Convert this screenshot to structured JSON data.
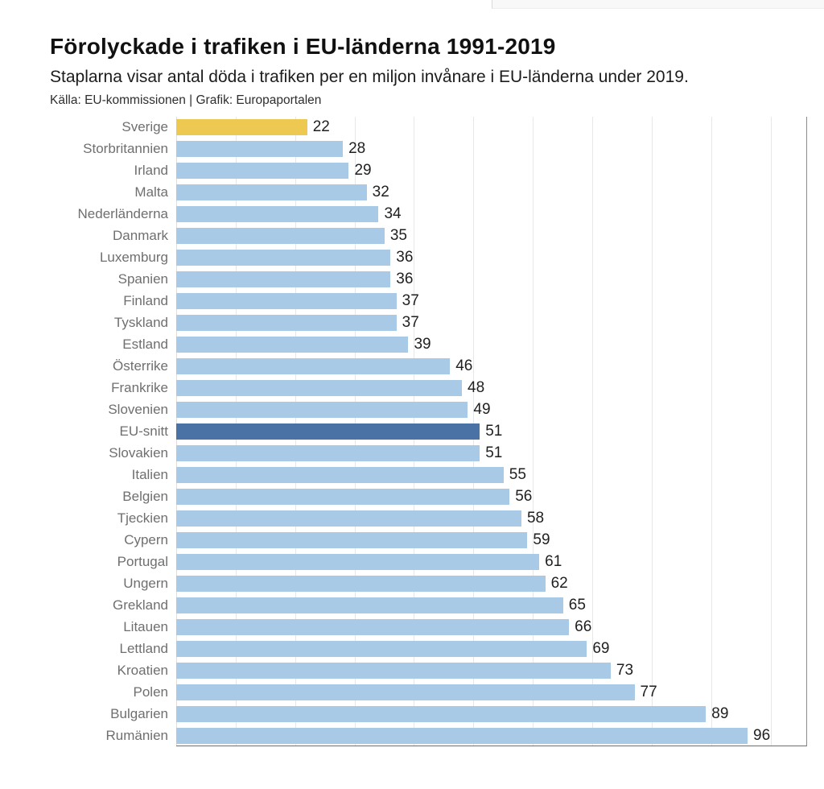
{
  "header": {
    "title": "Förolyckade i trafiken i EU-länderna 1991-2019",
    "subtitle": "Staplarna visar antal döda i trafiken per en miljon invånare i EU-länderna under 2019.",
    "source": "Källa: EU-kommissionen | Grafik: Europaportalen"
  },
  "chart_data": {
    "type": "bar",
    "orientation": "horizontal",
    "title": "Förolyckade i trafiken i EU-länderna 1991-2019",
    "subtitle": "Staplarna visar antal döda i trafiken per en miljon invånare i EU-länderna under 2019.",
    "source": "Källa: EU-kommissionen | Grafik: Europaportalen",
    "categories": [
      "Sverige",
      "Storbritannien",
      "Irland",
      "Malta",
      "Nederländerna",
      "Danmark",
      "Luxemburg",
      "Spanien",
      "Finland",
      "Tyskland",
      "Estland",
      "Österrike",
      "Frankrike",
      "Slovenien",
      "EU-snitt",
      "Slovakien",
      "Italien",
      "Belgien",
      "Tjeckien",
      "Cypern",
      "Portugal",
      "Ungern",
      "Grekland",
      "Litauen",
      "Lettland",
      "Kroatien",
      "Polen",
      "Bulgarien",
      "Rumänien"
    ],
    "values": [
      22,
      28,
      29,
      32,
      34,
      35,
      36,
      36,
      37,
      37,
      39,
      46,
      48,
      49,
      51,
      51,
      55,
      56,
      58,
      59,
      61,
      62,
      65,
      66,
      69,
      73,
      77,
      89,
      96
    ],
    "default_color": "#A8CAE7",
    "highlights": {
      "0": "#EDC951",
      "14": "#4A72A4"
    },
    "highlight_legend": {
      "#EDC951": "Sverige",
      "#4A72A4": "EU-snitt"
    },
    "xlim": [
      0,
      106
    ],
    "gridline_values": [
      10,
      20,
      30,
      40,
      50,
      60,
      70,
      80,
      90,
      100
    ],
    "grid": true,
    "value_labels": true,
    "legend": "none",
    "label_color": "#6f6f6f",
    "value_color": "#1f1f1f"
  }
}
